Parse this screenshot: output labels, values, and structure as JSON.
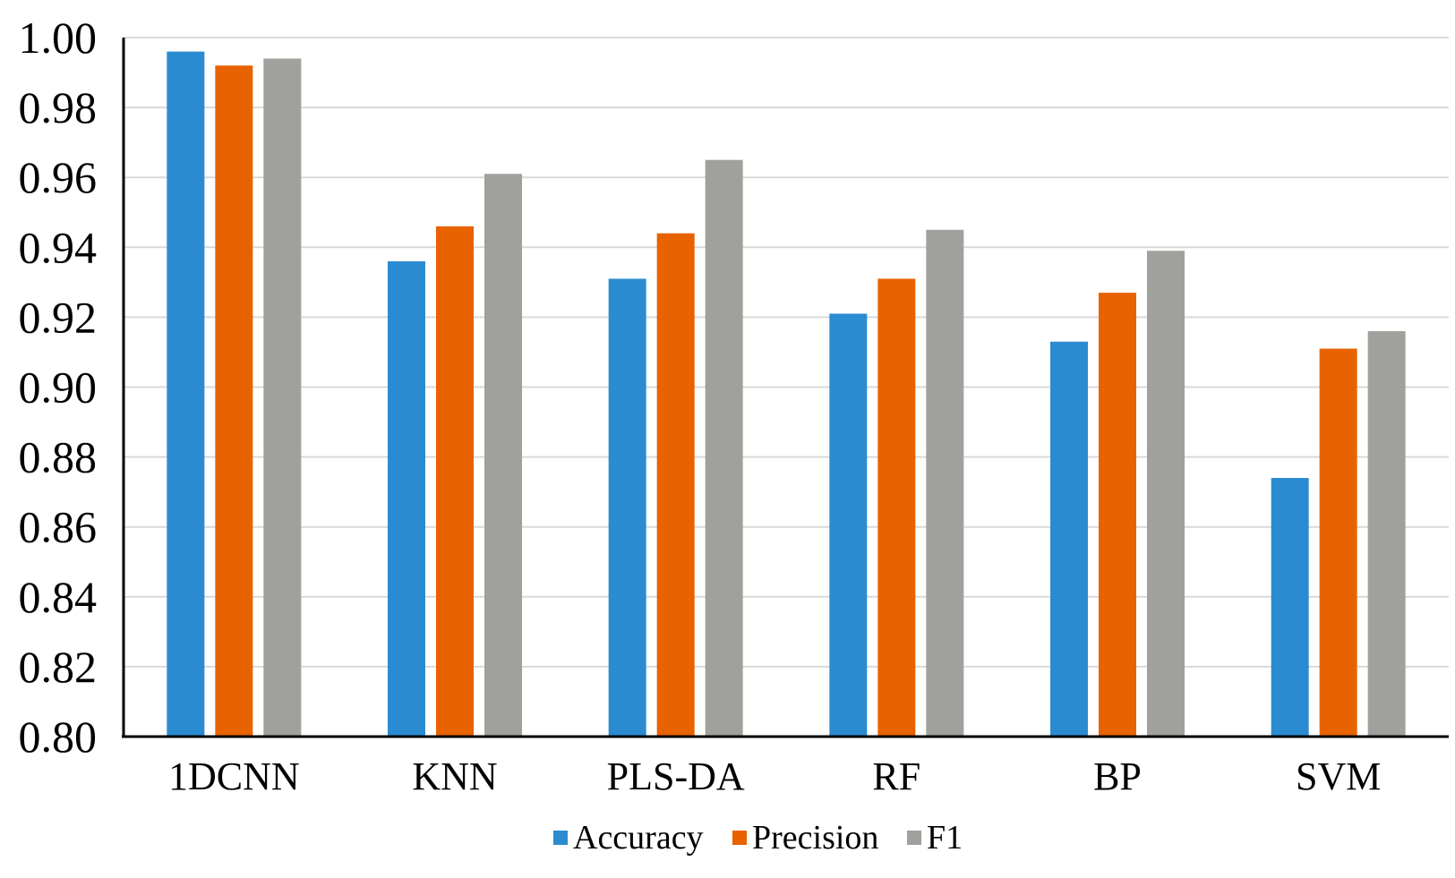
{
  "chart_data": {
    "type": "bar",
    "title": "",
    "xlabel": "",
    "ylabel": "",
    "categories": [
      "1DCNN",
      "KNN",
      "PLS-DA",
      "RF",
      "BP",
      "SVM"
    ],
    "series": [
      {
        "name": "Accuracy",
        "color": "#2b8bd0",
        "values": [
          0.996,
          0.936,
          0.931,
          0.921,
          0.913,
          0.874
        ]
      },
      {
        "name": "Precision",
        "color": "#e86200",
        "values": [
          0.992,
          0.946,
          0.944,
          0.931,
          0.927,
          0.911
        ]
      },
      {
        "name": "F1",
        "color": "#a0a09c",
        "values": [
          0.994,
          0.961,
          0.965,
          0.945,
          0.939,
          0.916
        ]
      }
    ],
    "ylim": [
      0.8,
      1.0
    ],
    "yticks": [
      "0.80",
      "0.82",
      "0.84",
      "0.86",
      "0.88",
      "0.90",
      "0.92",
      "0.94",
      "0.96",
      "0.98",
      "1.00"
    ],
    "grid": true,
    "legend_position": "bottom"
  }
}
